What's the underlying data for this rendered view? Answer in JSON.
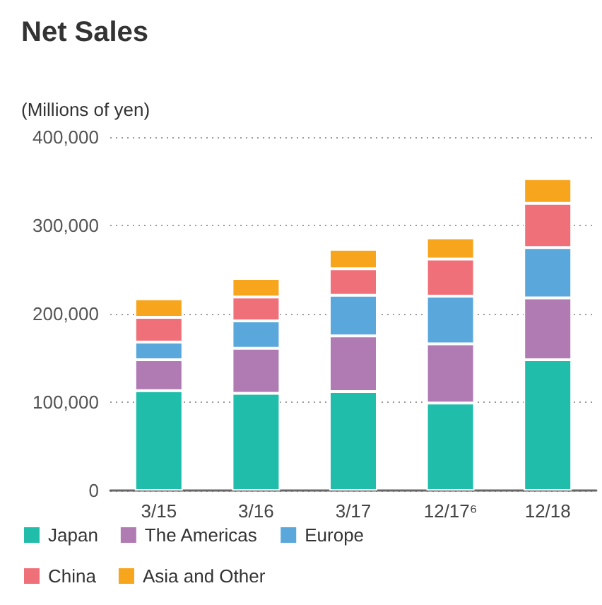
{
  "chart_data": {
    "type": "bar",
    "stacked": true,
    "title": "Net Sales",
    "subtitle": "(Millions of yen)",
    "categories": [
      "3/15",
      "3/16",
      "3/17",
      "12/17⁶",
      "12/18"
    ],
    "series": [
      {
        "name": "Japan",
        "color": "#20bdaa",
        "values": [
          113000,
          110000,
          112000,
          99000,
          148000
        ]
      },
      {
        "name": "The Americas",
        "color": "#b07ab3",
        "values": [
          35000,
          51000,
          63000,
          67000,
          70000
        ]
      },
      {
        "name": "Europe",
        "color": "#5aa8db",
        "values": [
          20000,
          31000,
          46000,
          54000,
          57000
        ]
      },
      {
        "name": "China",
        "color": "#f07079",
        "values": [
          28000,
          27000,
          30000,
          42000,
          50000
        ]
      },
      {
        "name": "Asia and Other",
        "color": "#f7a51c",
        "values": [
          21000,
          21000,
          22000,
          24000,
          28000
        ]
      }
    ],
    "ylim": [
      0,
      400000
    ],
    "yticks": [
      0,
      {
        "value": 100000,
        "label": "100,000"
      },
      {
        "value": 200000,
        "label": "200,000"
      },
      {
        "value": 300000,
        "label": "300,000"
      },
      {
        "value": 400000,
        "label": "400,000"
      }
    ],
    "grid": "y",
    "legend": "bottom"
  }
}
